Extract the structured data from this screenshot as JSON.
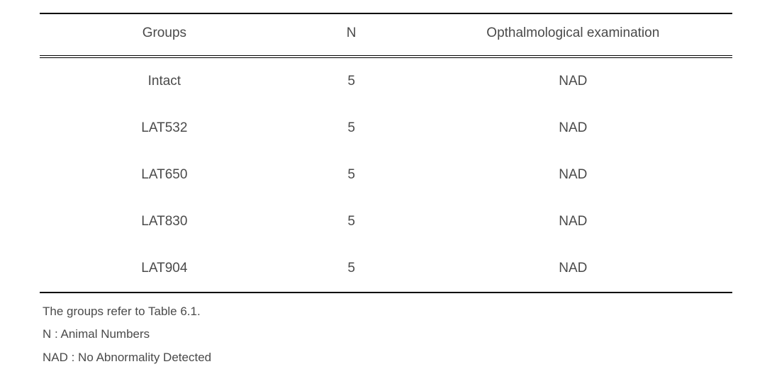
{
  "table": {
    "columns": [
      "Groups",
      "N",
      "Opthalmological examination"
    ],
    "rows": [
      [
        "Intact",
        "5",
        "NAD"
      ],
      [
        "LAT532",
        "5",
        "NAD"
      ],
      [
        "LAT650",
        "5",
        "NAD"
      ],
      [
        "LAT830",
        "5",
        "NAD"
      ],
      [
        "LAT904",
        "5",
        "NAD"
      ]
    ],
    "border_color": "#000000",
    "background_color": "#ffffff",
    "text_color": "#4a4a4a",
    "header_fontsize": 19,
    "body_fontsize": 19,
    "column_widths_pct": [
      36,
      18,
      46
    ]
  },
  "footnotes": {
    "lines": [
      "The groups refer to Table 6.1.",
      "N : Animal Numbers",
      "NAD : No Abnormality Detected"
    ],
    "fontsize": 17,
    "text_color": "#4a4a4a"
  }
}
